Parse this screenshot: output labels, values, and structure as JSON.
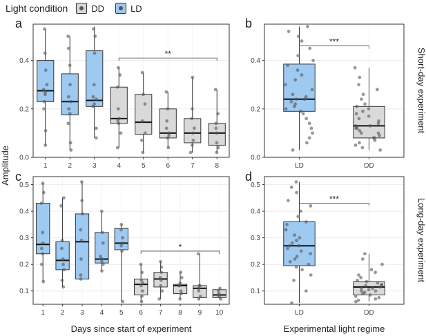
{
  "legend": {
    "title": "Light condition",
    "items": [
      {
        "label": "DD",
        "color": "#d9d9d9"
      },
      {
        "label": "LD",
        "color": "#9ec9f0"
      }
    ]
  },
  "colors": {
    "DD": "#d9d9d9",
    "LD": "#9ec9f0",
    "stroke": "#333333",
    "point": "#555555"
  },
  "y_axis_label": "Amplitude",
  "x_axis_labels": {
    "left": "Days since start of experiment",
    "right": "Experimental light regime"
  },
  "row_labels": {
    "top": "Short-day experiment",
    "bottom": "Long-day experiment"
  },
  "chart_data": [
    {
      "panel": "a",
      "type": "boxplot",
      "ylim": [
        0,
        0.55
      ],
      "yticks": [
        "0.0",
        "0.2",
        "0.4"
      ],
      "ytick_values": [
        0,
        0.2,
        0.4
      ],
      "categories": [
        "1",
        "2",
        "3",
        "4",
        "5",
        "6",
        "7",
        "8"
      ],
      "boxes": [
        {
          "cat": "1",
          "cond": "LD",
          "min": 0.05,
          "q1": 0.23,
          "median": 0.275,
          "q3": 0.4,
          "max": 0.53,
          "points": [
            0.05,
            0.11,
            0.2,
            0.23,
            0.26,
            0.27,
            0.28,
            0.3,
            0.36,
            0.43,
            0.53
          ]
        },
        {
          "cat": "2",
          "cond": "LD",
          "min": 0.03,
          "q1": 0.175,
          "median": 0.23,
          "q3": 0.345,
          "max": 0.5,
          "points": [
            0.03,
            0.06,
            0.14,
            0.18,
            0.2,
            0.23,
            0.25,
            0.3,
            0.38,
            0.45,
            0.5
          ]
        },
        {
          "cat": "3",
          "cond": "LD",
          "min": 0.08,
          "q1": 0.21,
          "median": 0.235,
          "q3": 0.44,
          "max": 0.54,
          "points": [
            0.08,
            0.12,
            0.21,
            0.22,
            0.24,
            0.25,
            0.3,
            0.43,
            0.5,
            0.53
          ]
        },
        {
          "cat": "4",
          "cond": "DD",
          "min": 0.04,
          "q1": 0.14,
          "median": 0.16,
          "q3": 0.29,
          "max": 0.37,
          "points": [
            0.04,
            0.1,
            0.14,
            0.15,
            0.16,
            0.2,
            0.29,
            0.34,
            0.37
          ]
        },
        {
          "cat": "5",
          "cond": "DD",
          "min": 0.02,
          "q1": 0.095,
          "median": 0.145,
          "q3": 0.26,
          "max": 0.35,
          "points": [
            0.02,
            0.07,
            0.1,
            0.15,
            0.22,
            0.26,
            0.35
          ]
        },
        {
          "cat": "6",
          "cond": "DD",
          "min": 0.04,
          "q1": 0.08,
          "median": 0.1,
          "q3": 0.2,
          "max": 0.27,
          "points": [
            0.04,
            0.08,
            0.09,
            0.1,
            0.12,
            0.15,
            0.2,
            0.27
          ]
        },
        {
          "cat": "7",
          "cond": "DD",
          "min": 0.02,
          "q1": 0.06,
          "median": 0.1,
          "q3": 0.16,
          "max": 0.33,
          "points": [
            0.02,
            0.05,
            0.07,
            0.1,
            0.12,
            0.16,
            0.2,
            0.33
          ]
        },
        {
          "cat": "8",
          "cond": "DD",
          "min": 0.02,
          "q1": 0.05,
          "median": 0.1,
          "q3": 0.14,
          "max": 0.28,
          "points": [
            0.02,
            0.04,
            0.06,
            0.1,
            0.12,
            0.14,
            0.18,
            0.28
          ]
        }
      ],
      "annotation": {
        "text": "**",
        "from": "4",
        "to": "8",
        "y": 0.41
      }
    },
    {
      "panel": "b",
      "type": "boxplot",
      "ylim": [
        0,
        0.55
      ],
      "yticks": [
        "0.0",
        "0.2",
        "0.4"
      ],
      "ytick_values": [
        0,
        0.2,
        0.4
      ],
      "categories": [
        "LD",
        "DD"
      ],
      "boxes": [
        {
          "cat": "LD",
          "cond": "LD",
          "min": 0.03,
          "q1": 0.19,
          "median": 0.24,
          "q3": 0.385,
          "max": 0.54,
          "points": [
            0.03,
            0.06,
            0.08,
            0.1,
            0.12,
            0.14,
            0.16,
            0.18,
            0.19,
            0.2,
            0.21,
            0.22,
            0.23,
            0.24,
            0.24,
            0.25,
            0.26,
            0.28,
            0.3,
            0.32,
            0.34,
            0.36,
            0.38,
            0.4,
            0.42,
            0.45,
            0.48,
            0.5,
            0.52,
            0.54
          ]
        },
        {
          "cat": "DD",
          "cond": "DD",
          "min": 0.03,
          "q1": 0.08,
          "median": 0.13,
          "q3": 0.21,
          "max": 0.37,
          "points": [
            0.03,
            0.04,
            0.05,
            0.06,
            0.07,
            0.08,
            0.08,
            0.09,
            0.1,
            0.1,
            0.11,
            0.12,
            0.12,
            0.13,
            0.13,
            0.14,
            0.15,
            0.16,
            0.17,
            0.18,
            0.19,
            0.2,
            0.21,
            0.22,
            0.24,
            0.26,
            0.28,
            0.3,
            0.33,
            0.37
          ]
        }
      ],
      "annotation": {
        "text": "***",
        "from": "LD",
        "to": "DD",
        "y": 0.46
      }
    },
    {
      "panel": "c",
      "type": "boxplot",
      "ylim": [
        0.05,
        0.53
      ],
      "yticks": [
        "0.1",
        "0.2",
        "0.3",
        "0.4",
        "0.5"
      ],
      "ytick_values": [
        0.1,
        0.2,
        0.3,
        0.4,
        0.5
      ],
      "categories": [
        "1",
        "2",
        "3",
        "4",
        "5",
        "6",
        "7",
        "8",
        "9",
        "10"
      ],
      "boxes": [
        {
          "cat": "1",
          "cond": "LD",
          "min": 0.135,
          "q1": 0.24,
          "median": 0.275,
          "q3": 0.43,
          "max": 0.505,
          "points": [
            0.135,
            0.2,
            0.24,
            0.26,
            0.28,
            0.32,
            0.43,
            0.47,
            0.505
          ]
        },
        {
          "cat": "2",
          "cond": "LD",
          "min": 0.115,
          "q1": 0.18,
          "median": 0.215,
          "q3": 0.285,
          "max": 0.45,
          "points": [
            0.115,
            0.14,
            0.18,
            0.2,
            0.22,
            0.26,
            0.29,
            0.42,
            0.45
          ]
        },
        {
          "cat": "3",
          "cond": "LD",
          "min": 0.145,
          "q1": 0.145,
          "median": 0.285,
          "q3": 0.39,
          "max": 0.51,
          "points": [
            0.145,
            0.16,
            0.22,
            0.29,
            0.33,
            0.39,
            0.44,
            0.51
          ]
        },
        {
          "cat": "4",
          "cond": "LD",
          "min": 0.175,
          "q1": 0.205,
          "median": 0.22,
          "q3": 0.32,
          "max": 0.4,
          "points": [
            0.175,
            0.2,
            0.21,
            0.22,
            0.23,
            0.28,
            0.32,
            0.4
          ]
        },
        {
          "cat": "5",
          "cond": "LD",
          "min": 0.06,
          "q1": 0.255,
          "median": 0.28,
          "q3": 0.335,
          "max": 0.35,
          "points": [
            0.06,
            0.25,
            0.27,
            0.28,
            0.3,
            0.33,
            0.35
          ]
        },
        {
          "cat": "6",
          "cond": "DD",
          "min": 0.06,
          "q1": 0.085,
          "median": 0.125,
          "q3": 0.145,
          "max": 0.2,
          "points": [
            0.06,
            0.08,
            0.1,
            0.12,
            0.13,
            0.14,
            0.17,
            0.2
          ]
        },
        {
          "cat": "7",
          "cond": "DD",
          "min": 0.07,
          "q1": 0.115,
          "median": 0.145,
          "q3": 0.17,
          "max": 0.21,
          "points": [
            0.07,
            0.1,
            0.12,
            0.14,
            0.15,
            0.17,
            0.19,
            0.21
          ]
        },
        {
          "cat": "8",
          "cond": "DD",
          "min": 0.07,
          "q1": 0.09,
          "median": 0.12,
          "q3": 0.125,
          "max": 0.17,
          "points": [
            0.07,
            0.09,
            0.1,
            0.12,
            0.12,
            0.13,
            0.15,
            0.17
          ]
        },
        {
          "cat": "9",
          "cond": "DD",
          "min": 0.07,
          "q1": 0.075,
          "median": 0.11,
          "q3": 0.12,
          "max": 0.24,
          "points": [
            0.07,
            0.08,
            0.1,
            0.11,
            0.12,
            0.12,
            0.24
          ]
        },
        {
          "cat": "10",
          "cond": "DD",
          "min": 0.07,
          "q1": 0.075,
          "median": 0.085,
          "q3": 0.105,
          "max": 0.11,
          "points": [
            0.07,
            0.08,
            0.085,
            0.09,
            0.1,
            0.11
          ]
        }
      ],
      "annotation": {
        "text": "*",
        "from": "6",
        "to": "10",
        "y": 0.25
      }
    },
    {
      "panel": "d",
      "type": "boxplot",
      "ylim": [
        0.05,
        0.53
      ],
      "yticks": [
        "0.1",
        "0.2",
        "0.3",
        "0.4",
        "0.5"
      ],
      "ytick_values": [
        0.1,
        0.2,
        0.3,
        0.4,
        0.5
      ],
      "categories": [
        "LD",
        "DD"
      ],
      "boxes": [
        {
          "cat": "LD",
          "cond": "LD",
          "min": 0.055,
          "q1": 0.195,
          "median": 0.27,
          "q3": 0.36,
          "max": 0.51,
          "points": [
            0.055,
            0.1,
            0.14,
            0.16,
            0.18,
            0.19,
            0.2,
            0.21,
            0.22,
            0.23,
            0.24,
            0.25,
            0.26,
            0.27,
            0.27,
            0.28,
            0.29,
            0.3,
            0.31,
            0.33,
            0.35,
            0.36,
            0.38,
            0.4,
            0.42,
            0.44,
            0.47,
            0.49,
            0.51
          ]
        },
        {
          "cat": "DD",
          "cond": "DD",
          "min": 0.06,
          "q1": 0.085,
          "median": 0.115,
          "q3": 0.135,
          "max": 0.24,
          "points": [
            0.06,
            0.065,
            0.07,
            0.075,
            0.08,
            0.085,
            0.09,
            0.095,
            0.1,
            0.1,
            0.105,
            0.11,
            0.11,
            0.115,
            0.12,
            0.12,
            0.125,
            0.13,
            0.135,
            0.14,
            0.15,
            0.16,
            0.17,
            0.18,
            0.2,
            0.22,
            0.24
          ]
        }
      ],
      "annotation": {
        "text": "***",
        "from": "LD",
        "to": "DD",
        "y": 0.43
      }
    }
  ]
}
